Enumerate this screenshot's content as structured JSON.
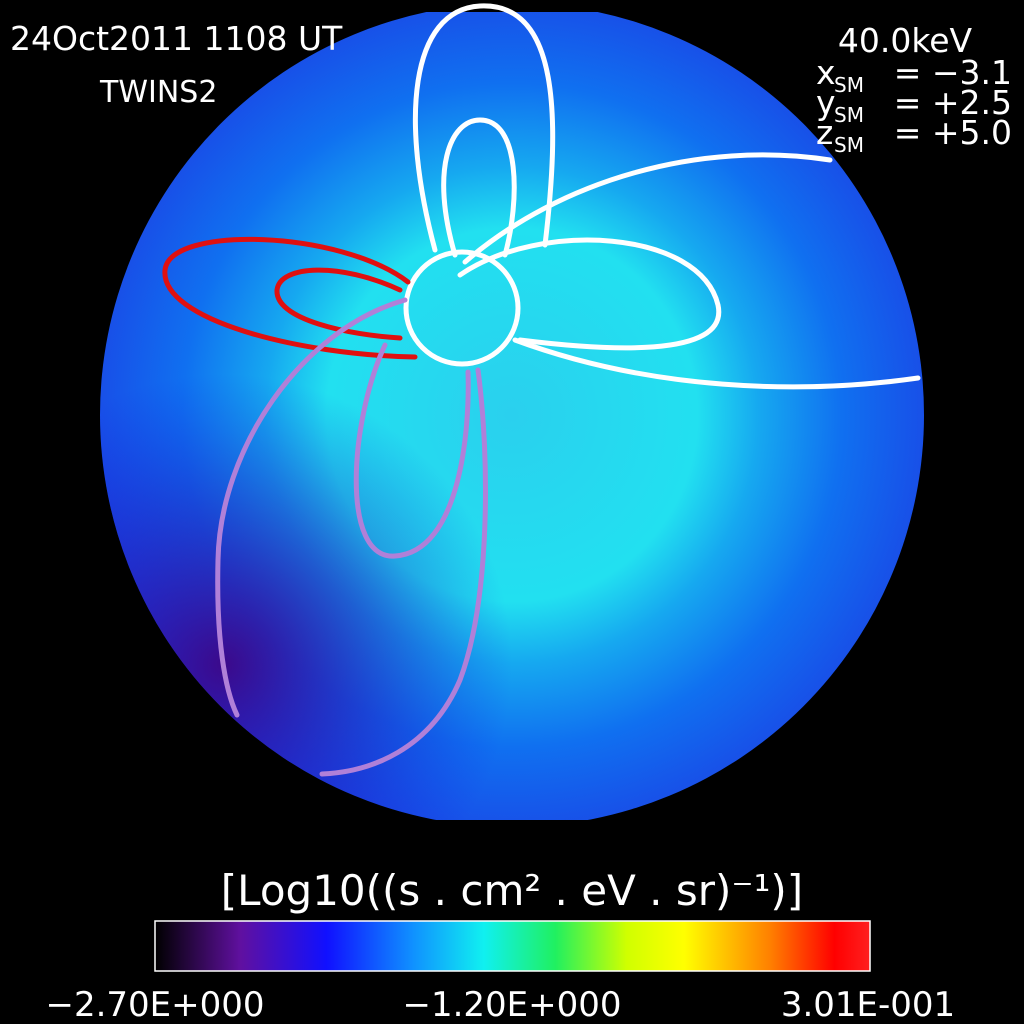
{
  "header": {
    "date": "24Oct2011 1108 UT",
    "satellite": "TWINS2"
  },
  "params": {
    "energy": "40.0keV",
    "coords": [
      {
        "axis": "x",
        "sub": "SM",
        "value": "= −3.1"
      },
      {
        "axis": "y",
        "sub": "SM",
        "value": "= +2.5"
      },
      {
        "axis": "z",
        "sub": "SM",
        "value": "= +5.0"
      }
    ]
  },
  "colorbar": {
    "label": "[Log10((s . cm² . eV . sr)⁻¹)]",
    "ticks": [
      "−2.70E+000",
      "−1.20E+000",
      "3.01E-001"
    ]
  }
}
